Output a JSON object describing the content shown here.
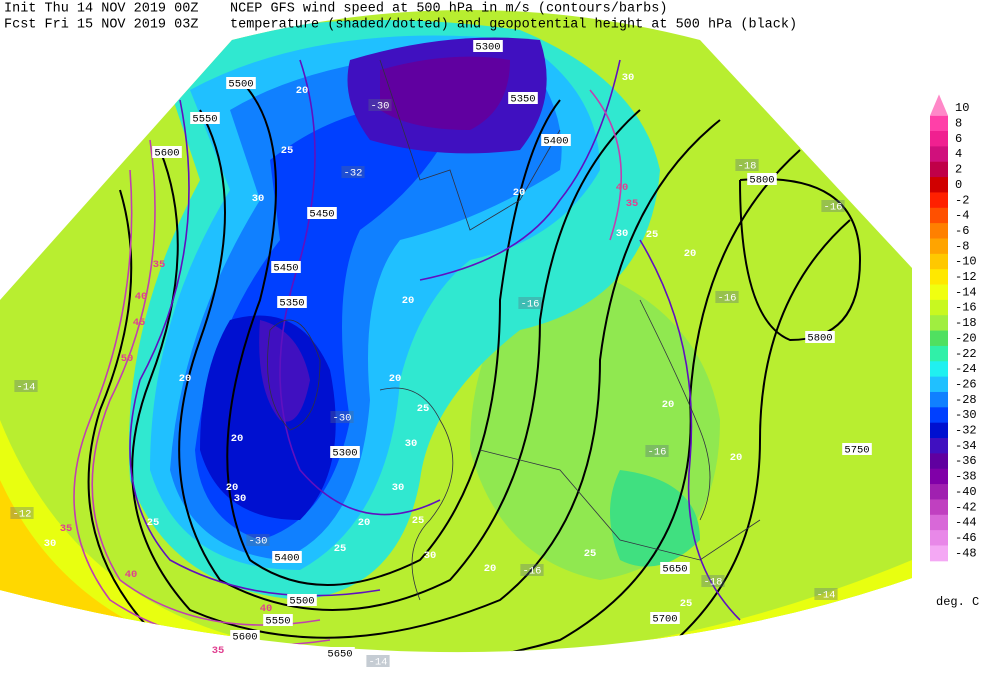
{
  "header": {
    "init": "Init  Thu 14 NOV 2019 00Z",
    "fcst": "Fcst Fri 15 NOV 2019 03Z",
    "line1": "NCEP GFS wind speed at 500 hPa in m/s (contours/barbs)",
    "line2": "temperature (shaded/dotted) and geopotential height at 500 hPa (black)"
  },
  "colorbar": {
    "levels": [
      10,
      8,
      6,
      4,
      2,
      0,
      -2,
      -4,
      -6,
      -8,
      -10,
      -12,
      -14,
      -16,
      -18,
      -20,
      -22,
      -24,
      -26,
      -28,
      -30,
      -32,
      -34,
      -36,
      -38,
      -40,
      -42,
      -44,
      -46,
      -48
    ],
    "colors": [
      "#ff88c8",
      "#ff40a8",
      "#f02090",
      "#d0107c",
      "#c00048",
      "#d00000",
      "#ff2000",
      "#ff5000",
      "#ff8000",
      "#ffa400",
      "#ffc800",
      "#ffe800",
      "#f0ff10",
      "#c8f820",
      "#a0ee40",
      "#50e060",
      "#30f0a8",
      "#20f0f0",
      "#20c0ff",
      "#1080ff",
      "#0040ff",
      "#0010d0",
      "#4010c0",
      "#6000a0",
      "#8000a8",
      "#a020b0",
      "#c040c0",
      "#d868d8",
      "#e888e8",
      "#f4a8f4"
    ],
    "unit": "deg. C"
  },
  "map": {
    "height_labels": [
      5300,
      5350,
      5350,
      5400,
      5400,
      5450,
      5450,
      5500,
      5500,
      5550,
      5550,
      5600,
      5600,
      5650,
      5650,
      5700,
      5750,
      5800,
      5800,
      5300
    ],
    "wind_labels": [
      20,
      25,
      30,
      35,
      40,
      45,
      50,
      20,
      20,
      20,
      25,
      30,
      35,
      40,
      20,
      20,
      20,
      25,
      30,
      30,
      25,
      20,
      25,
      30,
      20,
      25,
      20,
      20,
      20,
      30,
      35,
      40,
      25,
      25,
      30,
      40,
      35,
      30
    ],
    "temp_labels": [
      -30,
      -32,
      -30,
      -16,
      -16,
      -16,
      -18,
      -16,
      -16,
      -18,
      -14,
      -14,
      -30,
      -12,
      -14
    ]
  }
}
